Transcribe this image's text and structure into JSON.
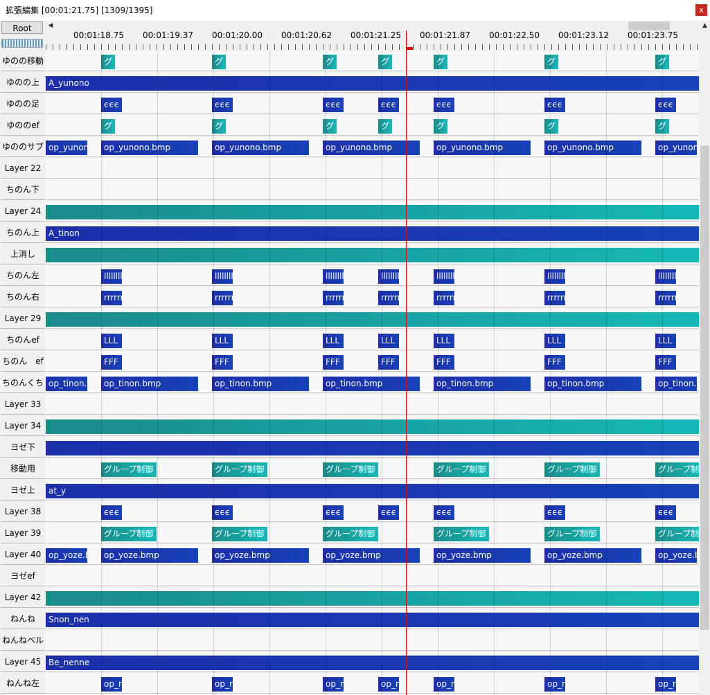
{
  "window": {
    "title": "拡張編集 [00:01:21.75] [1309/1395]",
    "close": "x"
  },
  "toolbar": {
    "root_label": "Root"
  },
  "ruler": {
    "labels": [
      "00:01:18.75",
      "00:01:19.37",
      "00:01:20.00",
      "00:01:20.62",
      "00:01:21.25",
      "00:01:21.87",
      "00:01:22.50",
      "00:01:23.12",
      "00:01:23.75"
    ]
  },
  "layers": [
    {
      "name": "ゆのの移動",
      "type": "teal-short",
      "text": "グ"
    },
    {
      "name": "ゆのの上",
      "type": "blue-many",
      "text": "A_yunono"
    },
    {
      "name": "ゆのの足",
      "type": "blue-small",
      "text": "ϵϵϵ"
    },
    {
      "name": "ゆののef",
      "type": "teal-short",
      "text": "グ"
    },
    {
      "name": "ゆののサブ",
      "type": "blue-long",
      "text": "op_yunono.bmp"
    },
    {
      "name": "Layer 22",
      "type": "empty",
      "text": ""
    },
    {
      "name": "ちのん下",
      "type": "empty",
      "text": ""
    },
    {
      "name": "Layer 24",
      "type": "teal-full",
      "text": ""
    },
    {
      "name": "ちのん上",
      "type": "blue-many",
      "text": "A_tinon"
    },
    {
      "name": "上消し",
      "type": "teal-full",
      "text": ""
    },
    {
      "name": "ちのん左",
      "type": "blue-small",
      "text": "llllllll"
    },
    {
      "name": "ちのん右",
      "type": "blue-small",
      "text": "rrrrrrr"
    },
    {
      "name": "Layer 29",
      "type": "teal-full",
      "text": ""
    },
    {
      "name": "ちのんef",
      "type": "blue-small",
      "text": "LLL"
    },
    {
      "name": "ちのん　ef",
      "type": "blue-small",
      "text": "FFF"
    },
    {
      "name": "ちのんくち",
      "type": "blue-long",
      "text": "op_tinon.bmp"
    },
    {
      "name": "Layer 33",
      "type": "empty",
      "text": ""
    },
    {
      "name": "Layer 34",
      "type": "teal-full",
      "text": ""
    },
    {
      "name": "ヨゼ下",
      "type": "blue-full",
      "text": ""
    },
    {
      "name": "移動用",
      "type": "teal-group",
      "text": "グループ制御"
    },
    {
      "name": "ヨゼ上",
      "type": "blue-many",
      "text": "at_y"
    },
    {
      "name": "Layer 38",
      "type": "blue-small",
      "text": "ϵϵϵ"
    },
    {
      "name": "Layer 39",
      "type": "teal-group",
      "text": "グループ制御"
    },
    {
      "name": "Layer 40",
      "type": "blue-long",
      "text": "op_yoze.bmp"
    },
    {
      "name": "ヨゼef",
      "type": "empty",
      "text": ""
    },
    {
      "name": "Layer 42",
      "type": "teal-full",
      "text": ""
    },
    {
      "name": "ねんね",
      "type": "blue-many",
      "text": "Snon_nen"
    },
    {
      "name": "ねんねベル",
      "type": "empty",
      "text": ""
    },
    {
      "name": "Layer 45",
      "type": "blue-many",
      "text": "Be_nenne"
    },
    {
      "name": "ねんね左",
      "type": "blue-small",
      "text": "op_nenne"
    }
  ]
}
